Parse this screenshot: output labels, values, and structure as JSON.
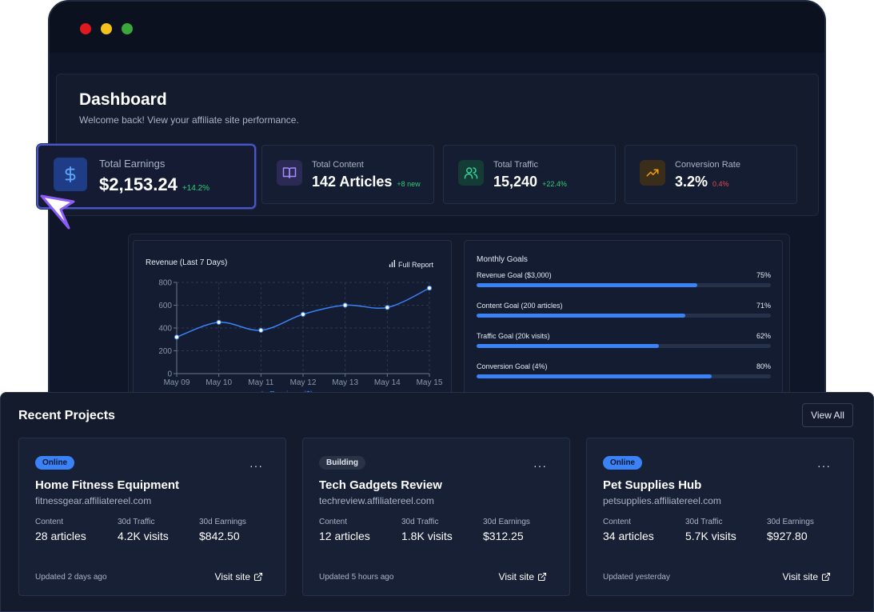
{
  "dashboard": {
    "title": "Dashboard",
    "subtitle": "Welcome back! View your affiliate site performance."
  },
  "stats": [
    {
      "label": "Total Earnings",
      "value": "$2,153.24",
      "delta": "+14.2%",
      "icon": "dollar-icon"
    },
    {
      "label": "Total Content",
      "value": "142 Articles",
      "delta": "+8 new",
      "icon": "book-icon"
    },
    {
      "label": "Total Traffic",
      "value": "15,240",
      "delta": "+22.4%",
      "icon": "users-icon"
    },
    {
      "label": "Conversion Rate",
      "value": "3.2%",
      "delta": "0.4%",
      "icon": "trending-up-icon"
    }
  ],
  "colors": {
    "accent": "#3b82f6",
    "positive": "#2fcf7a",
    "negative": "#e5484d"
  },
  "revenue_chart": {
    "title": "Revenue (Last 7 Days)",
    "report_label": "Full Report",
    "legend_label": "Earnings ($)"
  },
  "chart_data": {
    "type": "line",
    "title": "Revenue (Last 7 Days)",
    "categories": [
      "May 09",
      "May 10",
      "May 11",
      "May 12",
      "May 13",
      "May 14",
      "May 15"
    ],
    "series": [
      {
        "name": "Earnings ($)",
        "values": [
          320,
          450,
          380,
          520,
          600,
          580,
          750
        ]
      }
    ],
    "ylim": [
      0,
      800
    ],
    "yticks": [
      0,
      200,
      400,
      600,
      800
    ],
    "grid": true,
    "legend": "bottom"
  },
  "goals": {
    "title": "Monthly Goals",
    "items": [
      {
        "label": "Revenue Goal ($3,000)",
        "pct_label": "75%",
        "fraction": 0.75
      },
      {
        "label": "Content Goal (200 articles)",
        "pct_label": "71%",
        "fraction": 0.71
      },
      {
        "label": "Traffic Goal (20k visits)",
        "pct_label": "62%",
        "fraction": 0.62
      },
      {
        "label": "Conversion Goal (4%)",
        "pct_label": "80%",
        "fraction": 0.8
      }
    ]
  },
  "projects": {
    "title": "Recent Projects",
    "view_all": "View All",
    "metric_labels": {
      "content": "Content",
      "traffic": "30d Traffic",
      "earnings": "30d Earnings"
    },
    "visit_label": "Visit site",
    "items": [
      {
        "status": "Online",
        "name": "Home Fitness Equipment",
        "url": "fitnessgear.affiliatereel.com",
        "content": "28 articles",
        "traffic": "4.2K visits",
        "earnings": "$842.50",
        "updated": "Updated 2 days ago"
      },
      {
        "status": "Building",
        "name": "Tech Gadgets Review",
        "url": "techreview.affiliatereel.com",
        "content": "12 articles",
        "traffic": "1.8K visits",
        "earnings": "$312.25",
        "updated": "Updated 5 hours ago"
      },
      {
        "status": "Online",
        "name": "Pet Supplies Hub",
        "url": "petsupplies.affiliatereel.com",
        "content": "34 articles",
        "traffic": "5.7K visits",
        "earnings": "$927.80",
        "updated": "Updated yesterday"
      }
    ]
  }
}
